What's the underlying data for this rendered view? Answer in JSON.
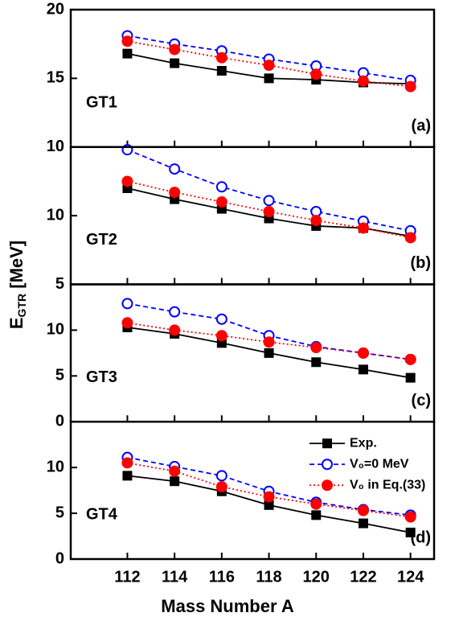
{
  "ylabel": {
    "main": "E",
    "sub": "GTR",
    "unit": " [MeV]"
  },
  "xlabel": "Mass Number A",
  "chart_data": [
    {
      "type": "line",
      "label": "GT1",
      "tag": "(a)",
      "xlim": [
        109.6,
        125
      ],
      "xticks": [
        112,
        114,
        116,
        118,
        120,
        122,
        124
      ],
      "ylim": [
        10,
        20
      ],
      "yticks": [
        10,
        15,
        20
      ],
      "x": [
        112,
        114,
        116,
        118,
        120,
        122,
        124
      ],
      "series": [
        {
          "color": "#000000",
          "marker": "square",
          "line_style": "solid",
          "values": [
            16.8,
            16.1,
            15.55,
            15.0,
            14.9,
            14.7,
            14.6
          ]
        },
        {
          "color": "#0000ff",
          "marker": "open-circle",
          "line_style": "dashed",
          "values": [
            18.1,
            17.5,
            17.0,
            16.4,
            15.9,
            15.4,
            14.85
          ]
        },
        {
          "color": "#ff0000",
          "marker": "circle",
          "line_style": "dotted",
          "values": [
            17.7,
            17.1,
            16.5,
            15.95,
            15.3,
            14.8,
            14.4
          ]
        }
      ]
    },
    {
      "type": "line",
      "label": "GT2",
      "tag": "(b)",
      "xlim": [
        109.6,
        125
      ],
      "xticks": [
        112,
        114,
        116,
        118,
        120,
        122,
        124
      ],
      "ylim": [
        5,
        15
      ],
      "yticks": [
        5,
        10
      ],
      "x": [
        112,
        114,
        116,
        118,
        120,
        122,
        124
      ],
      "series": [
        {
          "color": "#000000",
          "marker": "square",
          "line_style": "solid",
          "values": [
            12.0,
            11.2,
            10.5,
            9.8,
            9.25,
            9.1,
            8.5
          ]
        },
        {
          "color": "#0000ff",
          "marker": "open-circle",
          "line_style": "dashed",
          "values": [
            14.8,
            13.4,
            12.1,
            11.1,
            10.3,
            9.6,
            8.9
          ]
        },
        {
          "color": "#ff0000",
          "marker": "circle",
          "line_style": "dotted",
          "values": [
            12.5,
            11.7,
            11.0,
            10.3,
            9.65,
            9.1,
            8.4
          ]
        }
      ]
    },
    {
      "type": "line",
      "label": "GT3",
      "tag": "(c)",
      "xlim": [
        109.6,
        125
      ],
      "xticks": [
        112,
        114,
        116,
        118,
        120,
        122,
        124
      ],
      "ylim": [
        0,
        15
      ],
      "yticks": [
        0,
        5,
        10
      ],
      "x": [
        112,
        114,
        116,
        118,
        120,
        122,
        124
      ],
      "series": [
        {
          "color": "#000000",
          "marker": "square",
          "line_style": "solid",
          "values": [
            10.3,
            9.6,
            8.6,
            7.5,
            6.5,
            5.7,
            4.8
          ]
        },
        {
          "color": "#0000ff",
          "marker": "open-circle",
          "line_style": "dashed",
          "values": [
            12.9,
            12.0,
            11.2,
            9.4,
            8.2,
            7.5,
            6.8
          ]
        },
        {
          "color": "#ff0000",
          "marker": "circle",
          "line_style": "dotted",
          "values": [
            10.8,
            10.0,
            9.4,
            8.7,
            8.1,
            7.5,
            6.8
          ]
        }
      ]
    },
    {
      "type": "line",
      "label": "GT4",
      "tag": "(d)",
      "xlim": [
        109.6,
        125
      ],
      "xticks": [
        112,
        114,
        116,
        118,
        120,
        122,
        124
      ],
      "ylim": [
        0,
        15
      ],
      "yticks": [
        0,
        5,
        10
      ],
      "x": [
        112,
        114,
        116,
        118,
        120,
        122,
        124
      ],
      "legend": "upper right",
      "series": [
        {
          "name": "Exp.",
          "color": "#000000",
          "marker": "square",
          "line_style": "solid",
          "values": [
            9.1,
            8.5,
            7.4,
            5.9,
            4.8,
            3.9,
            2.9
          ]
        },
        {
          "name": "V₀=0 MeV",
          "color": "#0000ff",
          "marker": "open-circle",
          "line_style": "dashed",
          "values": [
            11.1,
            10.1,
            9.1,
            7.4,
            6.2,
            5.4,
            4.8
          ]
        },
        {
          "name": "V₀ in Eq.(33)",
          "color": "#ff0000",
          "marker": "circle",
          "line_style": "dotted",
          "values": [
            10.5,
            9.6,
            7.9,
            6.8,
            6.0,
            5.3,
            4.6
          ]
        }
      ]
    }
  ]
}
